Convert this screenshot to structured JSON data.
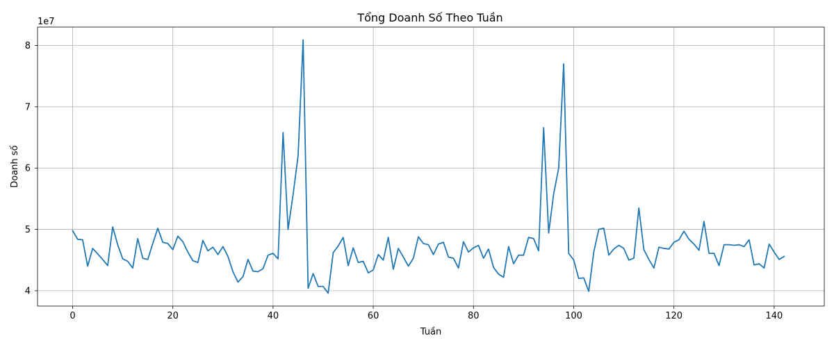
{
  "chart_data": {
    "type": "line",
    "title": "Tổng Doanh Số Theo Tuần",
    "xlabel": "Tuần",
    "ylabel": "Doanh số",
    "y_offset_label": "1e7",
    "xlim": [
      -7,
      150
    ],
    "ylim": [
      37500000,
      83000000
    ],
    "x_ticks": [
      0,
      20,
      40,
      60,
      80,
      100,
      120,
      140
    ],
    "x_tick_labels": [
      "0",
      "20",
      "40",
      "60",
      "80",
      "100",
      "120",
      "140"
    ],
    "y_ticks": [
      40000000,
      50000000,
      60000000,
      70000000,
      80000000
    ],
    "y_tick_labels": [
      "4",
      "5",
      "6",
      "7",
      "8"
    ],
    "grid": true,
    "line_color": "#1f77b4",
    "series": [
      {
        "values": [
          49800000,
          48400000,
          48300000,
          44000000,
          46900000,
          46000000,
          45100000,
          44100000,
          50400000,
          47500000,
          45200000,
          44800000,
          43700000,
          48500000,
          45300000,
          45100000,
          47700000,
          50200000,
          47900000,
          47700000,
          46700000,
          48900000,
          48000000,
          46300000,
          44900000,
          44600000,
          48200000,
          46500000,
          47100000,
          45900000,
          47200000,
          45600000,
          43100000,
          41400000,
          42300000,
          45100000,
          43200000,
          43100000,
          43600000,
          45800000,
          46100000,
          45200000,
          65800000,
          50000000,
          55700000,
          62000000,
          80900000,
          40400000,
          42800000,
          40700000,
          40700000,
          39600000,
          46200000,
          47300000,
          48700000,
          44100000,
          47000000,
          44600000,
          44800000,
          42900000,
          43400000,
          45900000,
          45000000,
          48700000,
          43500000,
          46900000,
          45500000,
          44000000,
          45300000,
          48800000,
          47700000,
          47500000,
          45900000,
          47600000,
          47900000,
          45500000,
          45300000,
          43700000,
          48000000,
          46300000,
          47000000,
          47400000,
          45300000,
          46800000,
          43800000,
          42700000,
          42200000,
          47200000,
          44400000,
          45800000,
          45800000,
          48700000,
          48500000,
          46500000,
          66600000,
          49400000,
          55800000,
          60000000,
          77000000,
          46100000,
          45000000,
          42000000,
          42100000,
          39900000,
          46300000,
          50000000,
          50200000,
          45800000,
          46800000,
          47400000,
          46900000,
          45000000,
          45300000,
          53500000,
          46700000,
          45100000,
          43700000,
          47100000,
          46900000,
          46800000,
          47900000,
          48300000,
          49700000,
          48400000,
          47600000,
          46600000,
          51300000,
          46100000,
          46100000,
          44100000,
          47500000,
          47500000,
          47400000,
          47500000,
          47200000,
          48300000,
          44200000,
          44400000,
          43700000,
          47600000,
          46300000,
          45100000,
          45600000
        ]
      }
    ]
  }
}
